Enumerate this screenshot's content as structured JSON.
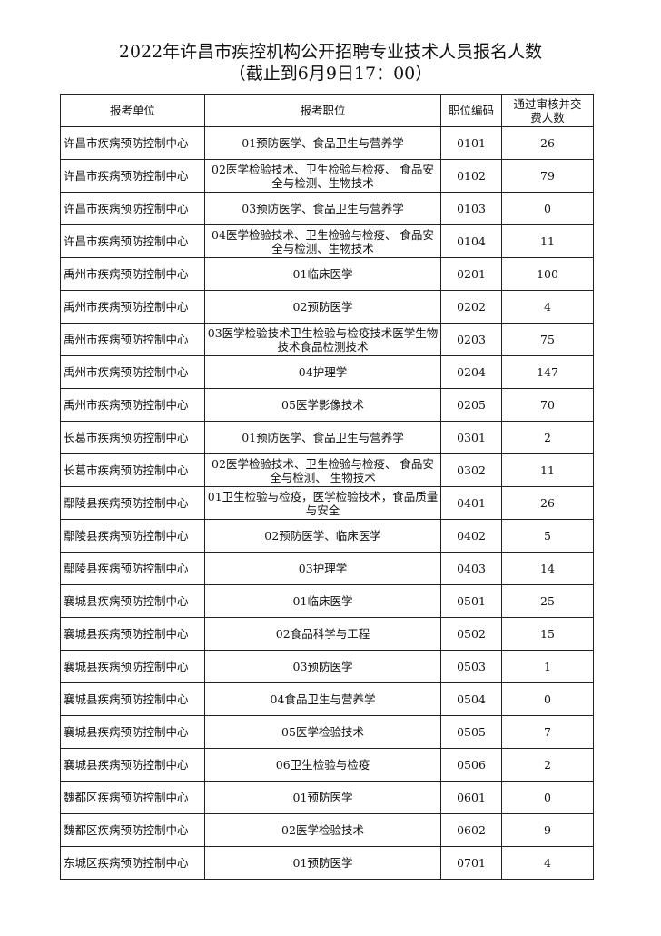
{
  "title": "2022年许昌市疾控机构公开招聘专业技术人员报名人数",
  "subtitle": "（截止到6月9日17：00）",
  "headers": [
    "报考单位",
    "报考职位",
    "职位编码",
    "通过审核并交费人数"
  ],
  "rows": [
    {
      "unit": "许昌市疾病预防控制中心",
      "position": "01预防医学、食品卫生与营养学",
      "code": "0101",
      "count": "26"
    },
    {
      "unit": "许昌市疾病预防控制中心",
      "position": "02医学检验技术、卫生检验与检疫、 食品安全与检测、生物技术",
      "code": "0102",
      "count": "79"
    },
    {
      "unit": "许昌市疾病预防控制中心",
      "position": "03预防医学、食品卫生与营养学",
      "code": "0103",
      "count": "0"
    },
    {
      "unit": "许昌市疾病预防控制中心",
      "position": "04医学检验技术、卫生检验与检疫、 食品安全与检测、生物技术",
      "code": "0104",
      "count": "11"
    },
    {
      "unit": "禹州市疾病预防控制中心",
      "position": "01临床医学",
      "code": "0201",
      "count": "100"
    },
    {
      "unit": "禹州市疾病预防控制中心",
      "position": "02预防医学",
      "code": "0202",
      "count": "4"
    },
    {
      "unit": "禹州市疾病预防控制中心",
      "position": "03医学检验技术卫生检验与检疫技术医学生物技术食品检测技术",
      "code": "0203",
      "count": "75"
    },
    {
      "unit": "禹州市疾病预防控制中心",
      "position": "04护理学",
      "code": "0204",
      "count": "147"
    },
    {
      "unit": "禹州市疾病预防控制中心",
      "position": "05医学影像技术",
      "code": "0205",
      "count": "70"
    },
    {
      "unit": "长葛市疾病预防控制中心",
      "position": "01预防医学、食品卫生与营养学",
      "code": "0301",
      "count": "2"
    },
    {
      "unit": "长葛市疾病预防控制中心",
      "position": "02医学检验技术、卫生检验与检疫、 食品安全与检测、 生物技术",
      "code": "0302",
      "count": "11"
    },
    {
      "unit": "鄢陵县疾病预防控制中心",
      "position": "01卫生检验与检疫，医学检验技术，食品质量与安全",
      "code": "0401",
      "count": "26"
    },
    {
      "unit": "鄢陵县疾病预防控制中心",
      "position": "02预防医学、临床医学",
      "code": "0402",
      "count": "5"
    },
    {
      "unit": "鄢陵县疾病预防控制中心",
      "position": "03护理学",
      "code": "0403",
      "count": "14"
    },
    {
      "unit": "襄城县疾病预防控制中心",
      "position": "01临床医学",
      "code": "0501",
      "count": "25"
    },
    {
      "unit": "襄城县疾病预防控制中心",
      "position": "02食品科学与工程",
      "code": "0502",
      "count": "15"
    },
    {
      "unit": "襄城县疾病预防控制中心",
      "position": "03预防医学",
      "code": "0503",
      "count": "1"
    },
    {
      "unit": "襄城县疾病预防控制中心",
      "position": "04食品卫生与营养学",
      "code": "0504",
      "count": "0"
    },
    {
      "unit": "襄城县疾病预防控制中心",
      "position": "05医学检验技术",
      "code": "0505",
      "count": "7"
    },
    {
      "unit": "襄城县疾病预防控制中心",
      "position": "06卫生检验与检疫",
      "code": "0506",
      "count": "2"
    },
    {
      "unit": "魏都区疾病预防控制中心",
      "position": "01预防医学",
      "code": "0601",
      "count": "0"
    },
    {
      "unit": "魏都区疾病预防控制中心",
      "position": "02医学检验技术",
      "code": "0602",
      "count": "9"
    },
    {
      "unit": "东城区疾病预防控制中心",
      "position": "01预防医学",
      "code": "0701",
      "count": "4"
    }
  ]
}
